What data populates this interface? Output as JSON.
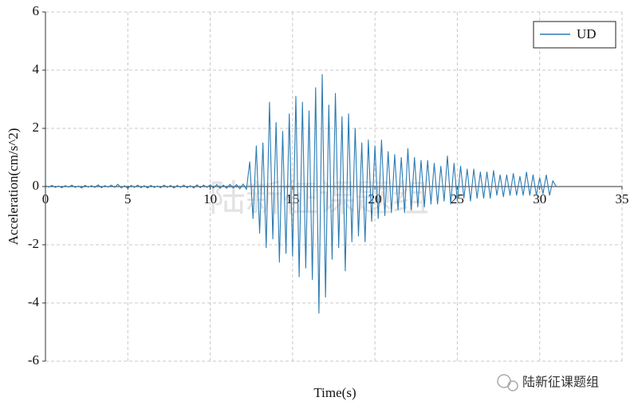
{
  "chart_data": {
    "type": "line",
    "xlabel": "Time(s)",
    "ylabel": "Acceleration(cm/s^2)",
    "watermark": "陆新征课题组",
    "logo_text": "陆新征课题组",
    "legend": "upper right",
    "grid": true,
    "xlim": [
      0,
      35
    ],
    "xticks": [
      0,
      5,
      10,
      15,
      20,
      25,
      30,
      35
    ],
    "ylim": [
      -6,
      6
    ],
    "yticks": [
      -6,
      -4,
      -2,
      0,
      2,
      4,
      6
    ],
    "x": [
      0,
      0.2,
      0.4,
      0.6,
      0.8,
      1,
      1.2,
      1.4,
      1.6,
      1.8,
      2,
      2.2,
      2.4,
      2.6,
      2.8,
      3,
      3.2,
      3.4,
      3.6,
      3.8,
      4,
      4.2,
      4.4,
      4.6,
      4.8,
      5,
      5.2,
      5.4,
      5.6,
      5.8,
      6,
      6.2,
      6.4,
      6.6,
      6.8,
      7,
      7.2,
      7.4,
      7.6,
      7.8,
      8,
      8.2,
      8.4,
      8.6,
      8.8,
      9,
      9.2,
      9.4,
      9.6,
      9.8,
      10,
      10.2,
      10.4,
      10.6,
      10.8,
      11,
      11.2,
      11.4,
      11.6,
      11.8,
      12,
      12.2,
      12.4,
      12.6,
      12.8,
      13,
      13.2,
      13.4,
      13.6,
      13.8,
      14,
      14.2,
      14.4,
      14.6,
      14.8,
      15,
      15.2,
      15.4,
      15.6,
      15.8,
      16,
      16.2,
      16.4,
      16.6,
      16.8,
      17,
      17.2,
      17.4,
      17.6,
      17.8,
      18,
      18.2,
      18.4,
      18.6,
      18.8,
      19,
      19.2,
      19.4,
      19.6,
      19.8,
      20,
      20.2,
      20.4,
      20.6,
      20.8,
      21,
      21.2,
      21.4,
      21.6,
      21.8,
      22,
      22.2,
      22.4,
      22.6,
      22.8,
      23,
      23.2,
      23.4,
      23.6,
      23.8,
      24,
      24.2,
      24.4,
      24.6,
      24.8,
      25,
      25.2,
      25.4,
      25.6,
      25.8,
      26,
      26.2,
      26.4,
      26.6,
      26.8,
      27,
      27.2,
      27.4,
      27.6,
      27.8,
      28,
      28.2,
      28.4,
      28.6,
      28.8,
      29,
      29.2,
      29.4,
      29.6,
      29.8,
      30,
      30.2,
      30.4,
      30.6,
      30.8,
      31
    ],
    "series": [
      {
        "name": "UD",
        "color": "#2b7bb3",
        "values": [
          0.03,
          -0.02,
          0.04,
          -0.03,
          0.02,
          -0.04,
          0.03,
          -0.02,
          0.05,
          -0.03,
          0.02,
          -0.05,
          0.04,
          -0.02,
          0.03,
          -0.03,
          0.06,
          -0.04,
          0.03,
          -0.02,
          0.05,
          -0.03,
          0.08,
          -0.05,
          0.03,
          -0.06,
          0.04,
          -0.03,
          0.05,
          -0.04,
          0.03,
          -0.05,
          0.04,
          -0.03,
          0.02,
          -0.04,
          0.05,
          -0.03,
          0.04,
          -0.05,
          0.04,
          -0.03,
          0.05,
          -0.04,
          0.03,
          -0.05,
          0.06,
          -0.04,
          0.05,
          -0.03,
          0.06,
          -0.05,
          0.07,
          -0.06,
          0.05,
          -0.06,
          0.08,
          -0.05,
          0.07,
          -0.08,
          0.09,
          -0.1,
          0.85,
          -1.1,
          1.4,
          -1.6,
          1.5,
          -2.1,
          2.9,
          -1.8,
          2.2,
          -2.6,
          1.9,
          -2.3,
          2.5,
          -2.4,
          3.1,
          -3.1,
          2.9,
          -2.8,
          2.6,
          -3.2,
          3.4,
          -4.35,
          3.85,
          -3.8,
          2.8,
          -2.5,
          3.2,
          -2.1,
          2.4,
          -2.9,
          2.5,
          -1.9,
          2.0,
          -1.7,
          1.5,
          -1.9,
          1.6,
          -1.2,
          1.4,
          -1.1,
          1.6,
          -1.0,
          1.2,
          -0.9,
          1.1,
          -0.8,
          1.0,
          -0.9,
          1.3,
          -0.8,
          1.0,
          -0.7,
          0.9,
          -0.7,
          0.9,
          -0.6,
          0.8,
          -0.6,
          0.7,
          -0.5,
          1.05,
          -0.6,
          0.8,
          -0.5,
          0.7,
          -0.4,
          0.6,
          -0.5,
          0.6,
          -0.4,
          0.5,
          -0.4,
          0.5,
          -0.4,
          0.55,
          -0.3,
          0.4,
          -0.35,
          0.4,
          -0.3,
          0.45,
          -0.3,
          0.35,
          -0.3,
          0.5,
          -0.3,
          0.4,
          -0.3,
          0.3,
          -0.25,
          0.4,
          -0.3,
          0.2,
          0.0
        ]
      }
    ]
  }
}
